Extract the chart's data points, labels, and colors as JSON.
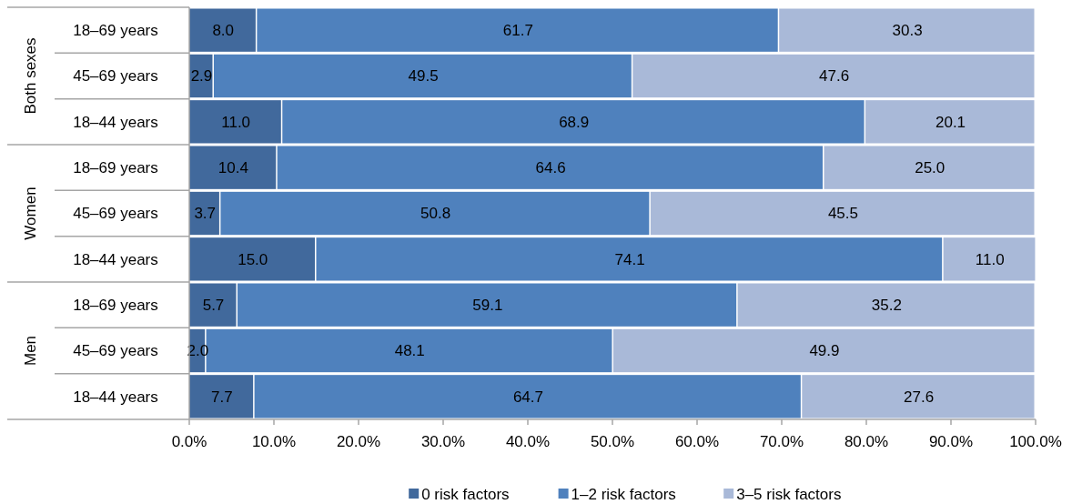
{
  "chart_data": {
    "type": "bar",
    "orientation": "horizontal",
    "stacked": true,
    "categories": [
      "18–69 years",
      "45–69 years",
      "18–44 years",
      "18–69 years",
      "45–69 years",
      "18–44 years",
      "18–69 years",
      "45–69 years",
      "18–44 years"
    ],
    "annotations": [
      "Both sexes",
      "Women",
      "Men"
    ],
    "series": [
      {
        "name": "0 risk factors",
        "color": "#41699c",
        "values": [
          8.0,
          2.9,
          11.0,
          10.4,
          3.7,
          15.0,
          5.7,
          2.0,
          7.7
        ],
        "value_labels": [
          "8.0",
          "2.9",
          "11.0",
          "10.4",
          "3.7",
          "15.0",
          "5.7",
          "2.0",
          "7.7"
        ]
      },
      {
        "name": "1–2 risk factors",
        "color": "#4f81bd",
        "values": [
          61.7,
          49.5,
          68.9,
          64.6,
          50.8,
          74.1,
          59.1,
          48.1,
          64.7
        ],
        "value_labels": [
          "61.7",
          "49.5",
          "68.9",
          "64.6",
          "50.8",
          "74.1",
          "59.1",
          "48.1",
          "64.7"
        ]
      },
      {
        "name": "3–5 risk factors",
        "color": "#a9b9d8",
        "values": [
          30.3,
          47.6,
          20.1,
          25.0,
          45.5,
          11.0,
          35.2,
          49.9,
          27.6
        ],
        "value_labels": [
          "30.3",
          "47.6",
          "20.1",
          "25.0",
          "45.5",
          "11.0",
          "35.2",
          "49.9",
          "27.6"
        ]
      }
    ],
    "xlim": [
      0,
      100
    ],
    "xticks": [
      {
        "value": 0,
        "label": "0.0%"
      },
      {
        "value": 10,
        "label": "10.0%"
      },
      {
        "value": 20,
        "label": "20.0%"
      },
      {
        "value": 30,
        "label": "30.0%"
      },
      {
        "value": 40,
        "label": "40.0%"
      },
      {
        "value": 50,
        "label": "50.0%"
      },
      {
        "value": 60,
        "label": "60.0%"
      },
      {
        "value": 70,
        "label": "70.0%"
      },
      {
        "value": 80,
        "label": "80.0%"
      },
      {
        "value": 90,
        "label": "90.0%"
      },
      {
        "value": 100,
        "label": "100.0%"
      }
    ],
    "grid": false,
    "legend": "bottom"
  }
}
